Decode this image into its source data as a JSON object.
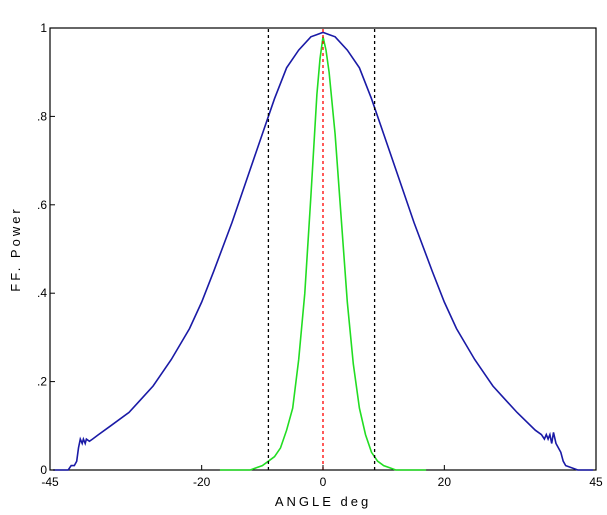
{
  "chart_data": {
    "type": "line",
    "title": "",
    "xlabel": "ANGLE  deg",
    "ylabel": "FF. Power",
    "xlim": [
      -45,
      45
    ],
    "ylim": [
      0,
      1
    ],
    "x_ticks": [
      -45,
      -20,
      0,
      20,
      45
    ],
    "x_tick_labels": [
      "-45",
      "-20",
      "0",
      "20",
      "45"
    ],
    "y_ticks": [
      0,
      0.2,
      0.4,
      0.6,
      0.8,
      1
    ],
    "y_tick_labels": [
      "0",
      ".2",
      ".4",
      ".6",
      ".8",
      "1"
    ],
    "grid": false,
    "legend": "none",
    "series": [
      {
        "color": "#1a1aa6",
        "style": "solid",
        "x": [
          -44.5,
          -42,
          -41.5,
          -41,
          -40.6,
          -40.3,
          -40,
          -39.7,
          -39.5,
          -39.2,
          -39,
          -38.5,
          -38,
          -37,
          -35,
          -32,
          -30,
          -28,
          -25,
          -22,
          -20,
          -18,
          -15,
          -12,
          -10,
          -8,
          -6,
          -4,
          -2,
          -1,
          0,
          1,
          2,
          4,
          6,
          8,
          10,
          12,
          15,
          18,
          20,
          22,
          25,
          28,
          30,
          32,
          35,
          36,
          36.5,
          36.8,
          37.1,
          37.4,
          37.7,
          38,
          38.4,
          38.8,
          39.2,
          39.6,
          40,
          42,
          44.5
        ],
        "y": [
          0.0,
          0.0,
          0.01,
          0.01,
          0.02,
          0.05,
          0.07,
          0.06,
          0.07,
          0.06,
          0.07,
          0.065,
          0.07,
          0.08,
          0.1,
          0.13,
          0.16,
          0.19,
          0.25,
          0.32,
          0.38,
          0.45,
          0.56,
          0.68,
          0.76,
          0.84,
          0.91,
          0.95,
          0.98,
          0.985,
          0.99,
          0.985,
          0.98,
          0.95,
          0.91,
          0.84,
          0.76,
          0.68,
          0.56,
          0.45,
          0.38,
          0.32,
          0.25,
          0.19,
          0.16,
          0.13,
          0.09,
          0.08,
          0.07,
          0.08,
          0.07,
          0.08,
          0.06,
          0.085,
          0.06,
          0.05,
          0.04,
          0.02,
          0.01,
          0.0,
          0.0
        ]
      },
      {
        "color": "#22dd22",
        "style": "solid",
        "x": [
          -17,
          -14,
          -12,
          -11,
          -10,
          -9,
          -8,
          -7,
          -6,
          -5,
          -4,
          -3,
          -2,
          -1,
          -0.5,
          0,
          0.5,
          1,
          2,
          3,
          4,
          5,
          6,
          7,
          8,
          9,
          10,
          11,
          12,
          14,
          17
        ],
        "y": [
          0.0,
          0.0,
          0.0,
          0.005,
          0.01,
          0.02,
          0.03,
          0.05,
          0.09,
          0.14,
          0.25,
          0.4,
          0.62,
          0.85,
          0.93,
          0.98,
          0.95,
          0.9,
          0.76,
          0.57,
          0.38,
          0.24,
          0.14,
          0.08,
          0.04,
          0.02,
          0.01,
          0.005,
          0.0,
          0.0,
          0.0
        ]
      },
      {
        "color": "#000000",
        "style": "dashed",
        "x": [
          -9,
          -9
        ],
        "y": [
          0,
          1
        ]
      },
      {
        "color": "#000000",
        "style": "dashed",
        "x": [
          8.5,
          8.5
        ],
        "y": [
          0,
          1
        ]
      },
      {
        "color": "#ff0000",
        "style": "dashed",
        "x": [
          0,
          0
        ],
        "y": [
          0,
          1
        ]
      }
    ]
  }
}
